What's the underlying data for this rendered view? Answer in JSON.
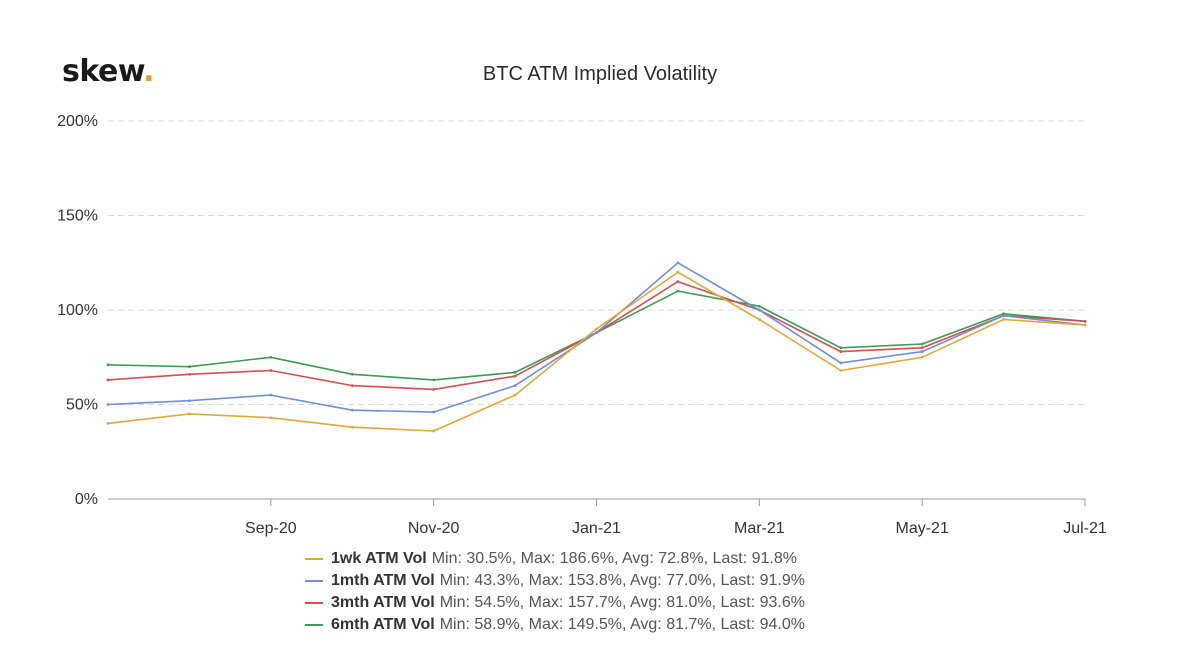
{
  "brand": {
    "name": "skew",
    "dot": ".",
    "dot_color": "#e0a020"
  },
  "chart_data": {
    "type": "line",
    "title": "BTC ATM Implied Volatility",
    "xlabel": "",
    "ylabel": "",
    "ylim": [
      0,
      200
    ],
    "yticks": [
      "0%",
      "50%",
      "100%",
      "150%",
      "200%"
    ],
    "xticks": [
      "Sep-20",
      "Nov-20",
      "Jan-21",
      "Mar-21",
      "May-21",
      "Jul-21"
    ],
    "grid": "horizontal dashed",
    "legend_position": "bottom",
    "x": [
      "Jul-20",
      "Aug-20",
      "Sep-20",
      "Oct-20",
      "Nov-20",
      "Dec-20",
      "Jan-21",
      "Feb-21",
      "Mar-21",
      "Apr-21",
      "May-21",
      "Jun-21",
      "Jul-21"
    ],
    "series": [
      {
        "name": "1wk ATM Vol",
        "color": "#e0a83a",
        "stats": "Min: 30.5%, Max: 186.6%, Avg: 72.8%, Last: 91.8%",
        "values": [
          40,
          45,
          43,
          38,
          36,
          55,
          90,
          120,
          95,
          68,
          75,
          95,
          92
        ]
      },
      {
        "name": "1mth ATM Vol",
        "color": "#6f8fd6",
        "stats": "Min: 43.3%, Max: 153.8%, Avg: 77.0%, Last: 91.9%",
        "values": [
          50,
          52,
          55,
          47,
          46,
          60,
          88,
          125,
          100,
          72,
          78,
          97,
          92
        ]
      },
      {
        "name": "3mth ATM Vol",
        "color": "#d45050",
        "stats": "Min: 54.5%, Max: 157.7%, Avg: 81.0%, Last: 93.6%",
        "values": [
          63,
          66,
          68,
          60,
          58,
          65,
          88,
          115,
          100,
          78,
          80,
          97,
          94
        ]
      },
      {
        "name": "6mth ATM Vol",
        "color": "#3f9a55",
        "stats": "Min: 58.9%, Max: 149.5%, Avg: 81.7%, Last: 94.0%",
        "values": [
          71,
          70,
          75,
          66,
          63,
          67,
          88,
          110,
          102,
          80,
          82,
          98,
          94
        ]
      }
    ]
  }
}
